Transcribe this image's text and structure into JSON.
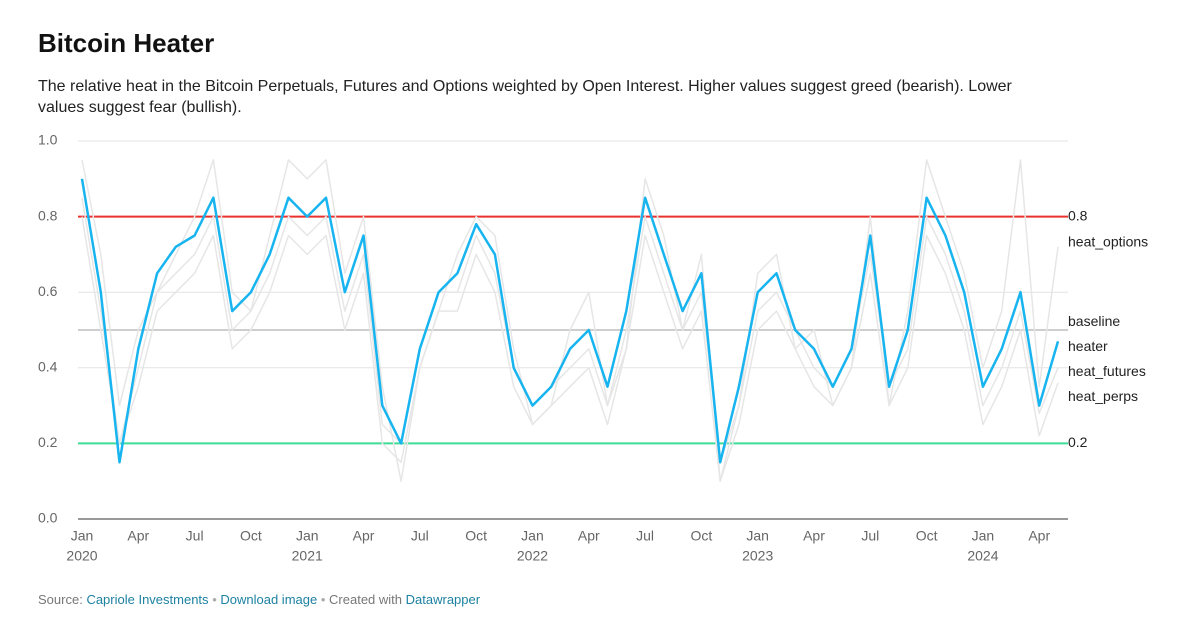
{
  "chart_data": {
    "type": "line",
    "title": "Bitcoin Heater",
    "subtitle": [
      "The relative heat in the Bitcoin Perpetuals, Futures and Options weighted by Open Interest. Higher values suggest greed (bearish). Lower",
      "values suggest fear (bullish)."
    ],
    "x": [
      "2020-01",
      "2020-02",
      "2020-03",
      "2020-04",
      "2020-05",
      "2020-06",
      "2020-07",
      "2020-08",
      "2020-09",
      "2020-10",
      "2020-11",
      "2020-12",
      "2021-01",
      "2021-02",
      "2021-03",
      "2021-04",
      "2021-05",
      "2021-06",
      "2021-07",
      "2021-08",
      "2021-09",
      "2021-10",
      "2021-11",
      "2021-12",
      "2022-01",
      "2022-02",
      "2022-03",
      "2022-04",
      "2022-05",
      "2022-06",
      "2022-07",
      "2022-08",
      "2022-09",
      "2022-10",
      "2022-11",
      "2022-12",
      "2023-01",
      "2023-02",
      "2023-03",
      "2023-04",
      "2023-05",
      "2023-06",
      "2023-07",
      "2023-08",
      "2023-09",
      "2023-10",
      "2023-11",
      "2023-12",
      "2024-01",
      "2024-02",
      "2024-03",
      "2024-04",
      "2024-05"
    ],
    "xlim": [
      "2020-01",
      "2024-05"
    ],
    "xticks": [
      {
        "value": "2020-01",
        "label": "Jan",
        "year": "2020"
      },
      {
        "value": "2020-04",
        "label": "Apr"
      },
      {
        "value": "2020-07",
        "label": "Jul"
      },
      {
        "value": "2020-10",
        "label": "Oct"
      },
      {
        "value": "2021-01",
        "label": "Jan",
        "year": "2021"
      },
      {
        "value": "2021-04",
        "label": "Apr"
      },
      {
        "value": "2021-07",
        "label": "Jul"
      },
      {
        "value": "2021-10",
        "label": "Oct"
      },
      {
        "value": "2022-01",
        "label": "Jan",
        "year": "2022"
      },
      {
        "value": "2022-04",
        "label": "Apr"
      },
      {
        "value": "2022-07",
        "label": "Jul"
      },
      {
        "value": "2022-10",
        "label": "Oct"
      },
      {
        "value": "2023-01",
        "label": "Jan",
        "year": "2023"
      },
      {
        "value": "2023-04",
        "label": "Apr"
      },
      {
        "value": "2023-07",
        "label": "Jul"
      },
      {
        "value": "2023-10",
        "label": "Oct"
      },
      {
        "value": "2024-01",
        "label": "Jan",
        "year": "2024"
      },
      {
        "value": "2024-04",
        "label": "Apr"
      }
    ],
    "ylim": [
      0,
      1
    ],
    "yticks": [
      {
        "value": 0,
        "label": "0.0"
      },
      0.2,
      0.4,
      0.6,
      0.8,
      {
        "value": 1,
        "label": "1.0"
      }
    ],
    "grid": true,
    "hlines": [
      {
        "value": 0.8,
        "color": "#e8322b"
      },
      {
        "name": "baseline",
        "value": 0.5,
        "color": "#bdbdbd"
      },
      {
        "value": 0.2,
        "color": "#3ddc97"
      }
    ],
    "series": [
      {
        "name": "heat_options",
        "color": "#e6e6e6",
        "values": [
          0.95,
          0.7,
          0.3,
          0.5,
          0.6,
          0.7,
          0.8,
          0.95,
          0.6,
          0.55,
          0.75,
          0.95,
          0.9,
          0.95,
          0.65,
          0.8,
          0.35,
          0.1,
          0.4,
          0.55,
          0.7,
          0.8,
          0.75,
          0.45,
          0.25,
          0.3,
          0.5,
          0.6,
          0.3,
          0.45,
          0.9,
          0.75,
          0.5,
          0.7,
          0.1,
          0.3,
          0.65,
          0.7,
          0.45,
          0.5,
          0.3,
          0.4,
          0.8,
          0.3,
          0.55,
          0.95,
          0.8,
          0.65,
          0.4,
          0.55,
          0.95,
          0.35,
          0.72
        ]
      },
      {
        "name": "heat_futures",
        "color": "#e6e6e6",
        "values": [
          0.85,
          0.55,
          0.2,
          0.4,
          0.6,
          0.65,
          0.7,
          0.8,
          0.5,
          0.55,
          0.65,
          0.8,
          0.75,
          0.8,
          0.55,
          0.7,
          0.25,
          0.2,
          0.45,
          0.6,
          0.6,
          0.75,
          0.65,
          0.4,
          0.3,
          0.35,
          0.4,
          0.45,
          0.3,
          0.5,
          0.8,
          0.65,
          0.5,
          0.6,
          0.15,
          0.3,
          0.55,
          0.6,
          0.5,
          0.4,
          0.35,
          0.45,
          0.7,
          0.35,
          0.45,
          0.8,
          0.7,
          0.55,
          0.3,
          0.4,
          0.55,
          0.28,
          0.4
        ]
      },
      {
        "name": "heat_perps",
        "color": "#e6e6e6",
        "values": [
          0.8,
          0.5,
          0.2,
          0.35,
          0.55,
          0.6,
          0.65,
          0.75,
          0.45,
          0.5,
          0.6,
          0.75,
          0.7,
          0.75,
          0.5,
          0.65,
          0.2,
          0.15,
          0.4,
          0.55,
          0.55,
          0.7,
          0.6,
          0.35,
          0.25,
          0.3,
          0.35,
          0.4,
          0.25,
          0.45,
          0.75,
          0.6,
          0.45,
          0.55,
          0.1,
          0.25,
          0.5,
          0.55,
          0.45,
          0.35,
          0.3,
          0.4,
          0.65,
          0.3,
          0.4,
          0.75,
          0.65,
          0.5,
          0.25,
          0.35,
          0.5,
          0.22,
          0.36
        ]
      },
      {
        "name": "heater",
        "color": "#18b4f0",
        "values": [
          0.9,
          0.6,
          0.15,
          0.45,
          0.65,
          0.72,
          0.75,
          0.85,
          0.55,
          0.6,
          0.7,
          0.85,
          0.8,
          0.85,
          0.6,
          0.75,
          0.3,
          0.2,
          0.45,
          0.6,
          0.65,
          0.78,
          0.7,
          0.4,
          0.3,
          0.35,
          0.45,
          0.5,
          0.35,
          0.55,
          0.85,
          0.7,
          0.55,
          0.65,
          0.15,
          0.35,
          0.6,
          0.65,
          0.5,
          0.45,
          0.35,
          0.45,
          0.75,
          0.35,
          0.5,
          0.85,
          0.75,
          0.6,
          0.35,
          0.45,
          0.6,
          0.3,
          0.47
        ]
      }
    ],
    "footer": {
      "prefix": "Source:",
      "source": "Capriole Investments",
      "download": "Download image",
      "created": "Created with",
      "tool": "Datawrapper"
    }
  }
}
